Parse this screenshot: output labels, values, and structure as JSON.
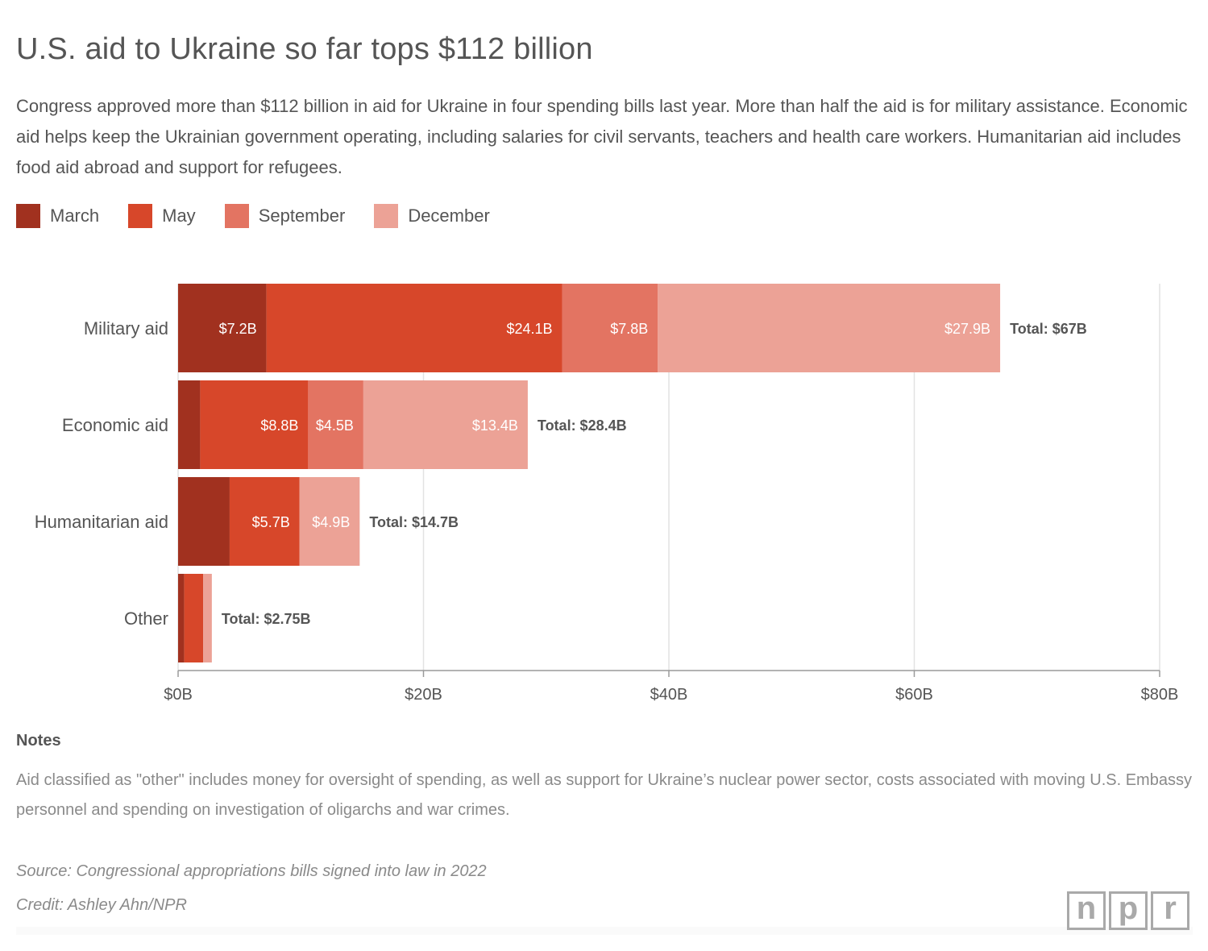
{
  "title": "U.S. aid to Ukraine so far tops $112 billion",
  "subtitle": "Congress approved more than $112 billion in aid for Ukraine in four spending bills last year. More than half the aid is for military assistance. Economic aid helps keep the Ukrainian government operating, including salaries for civil servants, teachers and health care workers. Humanitarian aid includes food aid abroad and support for refugees.",
  "legend": [
    {
      "label": "March",
      "color": "#a1311f"
    },
    {
      "label": "May",
      "color": "#d7472a"
    },
    {
      "label": "September",
      "color": "#e37462"
    },
    {
      "label": "December",
      "color": "#eca296"
    }
  ],
  "chart_data": {
    "type": "bar",
    "orientation": "horizontal",
    "stacked": true,
    "categories": [
      "Military aid",
      "Economic aid",
      "Humanitarian aid",
      "Other"
    ],
    "series": [
      {
        "name": "March",
        "color": "#a1311f",
        "values": [
          7.2,
          1.8,
          4.2,
          0.5
        ],
        "labels": [
          "$7.2B",
          "",
          "",
          ""
        ]
      },
      {
        "name": "May",
        "color": "#d7472a",
        "values": [
          24.1,
          8.8,
          5.7,
          1.55
        ],
        "labels": [
          "$24.1B",
          "$8.8B",
          "$5.7B",
          ""
        ]
      },
      {
        "name": "September",
        "color": "#e37462",
        "values": [
          7.8,
          4.5,
          0,
          0
        ],
        "labels": [
          "$7.8B",
          "$4.5B",
          "",
          ""
        ]
      },
      {
        "name": "December",
        "color": "#eca296",
        "values": [
          27.9,
          13.4,
          4.9,
          0.7
        ],
        "labels": [
          "$27.9B",
          "$13.4B",
          "$4.9B",
          ""
        ]
      }
    ],
    "totals": [
      "Total: $67B",
      "Total: $28.4B",
      "Total: $14.7B",
      "Total: $2.75B"
    ],
    "xlim": [
      0,
      80
    ],
    "xticks": [
      0,
      20,
      40,
      60,
      80
    ],
    "xtick_labels": [
      "$0B",
      "$20B",
      "$40B",
      "$60B",
      "$80B"
    ],
    "grid": "vertical",
    "legend_position": "top-left"
  },
  "notes": {
    "heading": "Notes",
    "text": "Aid classified as \"other\" includes money for oversight of spending, as well as support for Ukraine’s nuclear power sector, costs associated with moving U.S. Embassy personnel and spending on investigation of oligarchs and war crimes."
  },
  "source": "Source: Congressional appropriations bills signed into law in 2022",
  "credit": "Credit: Ashley Ahn/NPR",
  "logo": {
    "letters": [
      "n",
      "p",
      "r"
    ]
  }
}
